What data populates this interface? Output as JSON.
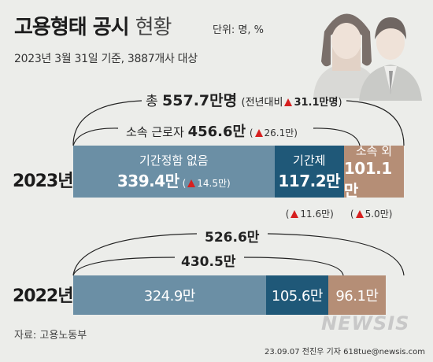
{
  "header": {
    "title_main": "고용형태 공시",
    "title_sub": "현황",
    "unit": "단위: 명, %",
    "subtitle": "2023년 3월 31일 기준,  3887개사 대상"
  },
  "chart_data": {
    "type": "bar",
    "orientation": "horizontal-stacked",
    "unit": "만명",
    "categories": [
      "2023년",
      "2022년"
    ],
    "series": [
      {
        "name": "기간정함 없음",
        "values": [
          339.4,
          324.9
        ],
        "value_labels": [
          "339.4만",
          "324.9만"
        ],
        "color": "#6b8fa5",
        "change_2023": "14.5만"
      },
      {
        "name": "기간제",
        "values": [
          117.2,
          105.6
        ],
        "value_labels": [
          "117.2만",
          "105.6만"
        ],
        "color": "#1f5878",
        "change_2023": "11.6만"
      },
      {
        "name": "소속 외",
        "values": [
          101.1,
          96.1
        ],
        "value_labels": [
          "101.1만",
          "96.1만"
        ],
        "color": "#b58e76",
        "change_2023": "5.0만"
      }
    ],
    "totals": {
      "2023": {
        "total_prefix": "총",
        "total": "557.7만명",
        "yoy_open": "(전년대비",
        "yoy": "31.1만명",
        "yoy_close": ")",
        "direct_label": "소속 근로자",
        "direct": "456.6만",
        "direct_change": "26.1만"
      },
      "2022": {
        "total": "526.6만",
        "direct": "430.5만"
      }
    }
  },
  "footer": {
    "source": "자료: 고용노동부",
    "credit": "23.09.07 전진우 기자 618tue@newsis.com",
    "logo": "NEWSIS"
  }
}
